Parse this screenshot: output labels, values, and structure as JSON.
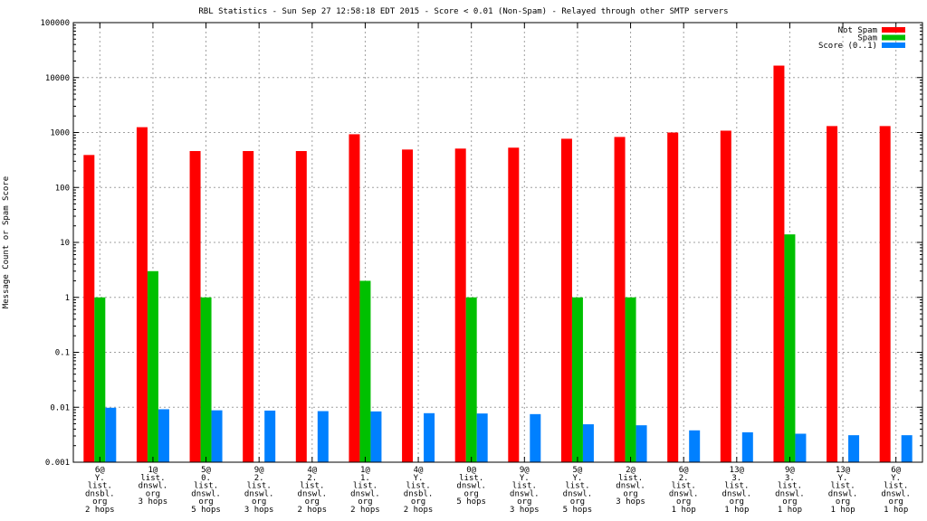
{
  "chart_data": {
    "type": "bar",
    "title": "RBL Statistics - Sun Sep 27 12:58:18 EDT 2015 - Score < 0.01 (Non-Spam) - Relayed through other SMTP servers",
    "xlabel": "",
    "ylabel": "Message Count or Spam Score",
    "yscale": "log",
    "ylim": [
      0.001,
      100000
    ],
    "yticks": [
      {
        "value": 0.001,
        "label": "0.001"
      },
      {
        "value": 0.01,
        "label": "0.01"
      },
      {
        "value": 0.1,
        "label": "0.1"
      },
      {
        "value": 1,
        "label": "1"
      },
      {
        "value": 10,
        "label": "10"
      },
      {
        "value": 100,
        "label": "100"
      },
      {
        "value": 1000,
        "label": "1000"
      },
      {
        "value": 10000,
        "label": "10000"
      },
      {
        "value": 100000,
        "label": "100000"
      }
    ],
    "grid": true,
    "legend_position": "top-right",
    "categories": [
      [
        "6@",
        "Y.",
        "list.",
        "dnsbl.",
        "org",
        "2 hops"
      ],
      [
        "1@",
        "list.",
        "dnswl.",
        "org",
        "3 hops"
      ],
      [
        "5@",
        "0.",
        "list.",
        "dnswl.",
        "org",
        "5 hops"
      ],
      [
        "9@",
        "2.",
        "list.",
        "dnswl.",
        "org",
        "3 hops"
      ],
      [
        "4@",
        "2.",
        "list.",
        "dnswl.",
        "org",
        "2 hops"
      ],
      [
        "1@",
        "1.",
        "list.",
        "dnswl.",
        "org",
        "2 hops"
      ],
      [
        "4@",
        "Y.",
        "list.",
        "dnsbl.",
        "org",
        "2 hops"
      ],
      [
        "0@",
        "list.",
        "dnswl.",
        "org",
        "5 hops"
      ],
      [
        "9@",
        "Y.",
        "list.",
        "dnswl.",
        "org",
        "3 hops"
      ],
      [
        "5@",
        "Y.",
        "list.",
        "dnswl.",
        "org",
        "5 hops"
      ],
      [
        "2@",
        "list.",
        "dnswl.",
        "org",
        "3 hops"
      ],
      [
        "6@",
        "2.",
        "list.",
        "dnswl.",
        "org",
        "1 hop"
      ],
      [
        "13@",
        "3.",
        "list.",
        "dnswl.",
        "org",
        "1 hop"
      ],
      [
        "9@",
        "3.",
        "list.",
        "dnswl.",
        "org",
        "1 hop"
      ],
      [
        "13@",
        "Y.",
        "list.",
        "dnswl.",
        "org",
        "1 hop"
      ],
      [
        "6@",
        "Y.",
        "list.",
        "dnswl.",
        "org",
        "1 hop"
      ]
    ],
    "series": [
      {
        "name": "Not Spam",
        "color": "#ff0000",
        "values": [
          390,
          1250,
          460,
          460,
          460,
          930,
          490,
          510,
          530,
          770,
          830,
          1000,
          1080,
          16500,
          1310,
          1310
        ]
      },
      {
        "name": "Spam",
        "color": "#00c000",
        "values": [
          1,
          3,
          1,
          null,
          null,
          2,
          null,
          1,
          null,
          1,
          1,
          null,
          null,
          14,
          null,
          null
        ]
      },
      {
        "name": "Score (0..1)",
        "color": "#0080ff",
        "values": [
          0.0098,
          0.0092,
          0.0088,
          0.0087,
          0.0085,
          0.0084,
          0.0078,
          0.0077,
          0.0075,
          0.0049,
          0.0047,
          0.0038,
          0.0035,
          0.0033,
          0.0031,
          0.0031
        ]
      }
    ]
  }
}
